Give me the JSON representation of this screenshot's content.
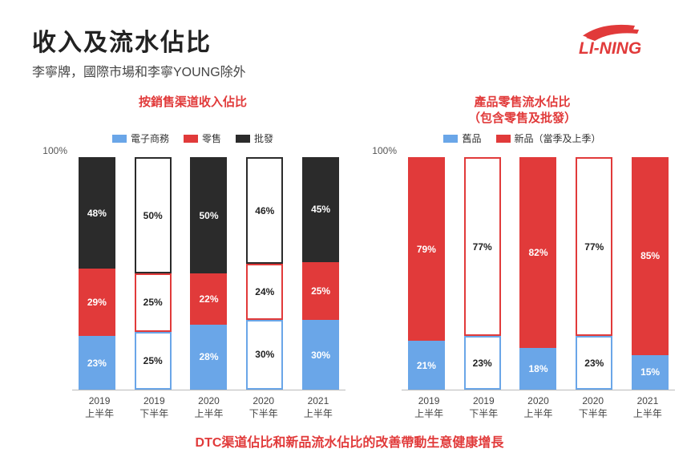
{
  "title": "收入及流水佔比",
  "subtitle": "李寧牌，國際市場和李寧YOUNG除外",
  "brand": "LI-NING",
  "brand_color": "#e13a3a",
  "footer_note": "DTC渠道佔比和新品流水佔比的改善帶動生意健康增長",
  "footer_color": "#e13a3a",
  "chart_left": {
    "title": "按銷售渠道收入佔比",
    "type": "stacked-bar-100",
    "y_top_label": "100%",
    "legend": [
      {
        "label": "電子商務",
        "color": "#6aa6e8"
      },
      {
        "label": "零售",
        "color": "#e13a3a"
      },
      {
        "label": "批發",
        "color": "#2b2b2b"
      }
    ],
    "periods": [
      {
        "line1": "2019",
        "line2": "上半年",
        "hollow": false,
        "segments": [
          {
            "v": 48,
            "c": "#2b2b2b"
          },
          {
            "v": 29,
            "c": "#e13a3a"
          },
          {
            "v": 23,
            "c": "#6aa6e8"
          }
        ]
      },
      {
        "line1": "2019",
        "line2": "下半年",
        "hollow": true,
        "segments": [
          {
            "v": 50,
            "c": "#2b2b2b"
          },
          {
            "v": 25,
            "c": "#e13a3a"
          },
          {
            "v": 25,
            "c": "#6aa6e8"
          }
        ]
      },
      {
        "line1": "2020",
        "line2": "上半年",
        "hollow": false,
        "segments": [
          {
            "v": 50,
            "c": "#2b2b2b"
          },
          {
            "v": 22,
            "c": "#e13a3a"
          },
          {
            "v": 28,
            "c": "#6aa6e8"
          }
        ]
      },
      {
        "line1": "2020",
        "line2": "下半年",
        "hollow": true,
        "segments": [
          {
            "v": 46,
            "c": "#2b2b2b"
          },
          {
            "v": 24,
            "c": "#e13a3a"
          },
          {
            "v": 30,
            "c": "#6aa6e8"
          }
        ]
      },
      {
        "line1": "2021",
        "line2": "上半年",
        "hollow": false,
        "segments": [
          {
            "v": 45,
            "c": "#2b2b2b"
          },
          {
            "v": 25,
            "c": "#e13a3a"
          },
          {
            "v": 30,
            "c": "#6aa6e8"
          }
        ]
      }
    ]
  },
  "chart_right": {
    "title": "產品零售流水佔比\n（包含零售及批發）",
    "type": "stacked-bar-100",
    "y_top_label": "100%",
    "legend": [
      {
        "label": "舊品",
        "color": "#6aa6e8"
      },
      {
        "label": "新品（當季及上季）",
        "color": "#e13a3a"
      }
    ],
    "periods": [
      {
        "line1": "2019",
        "line2": "上半年",
        "hollow": false,
        "segments": [
          {
            "v": 79,
            "c": "#e13a3a"
          },
          {
            "v": 21,
            "c": "#6aa6e8"
          }
        ]
      },
      {
        "line1": "2019",
        "line2": "下半年",
        "hollow": true,
        "segments": [
          {
            "v": 77,
            "c": "#e13a3a"
          },
          {
            "v": 23,
            "c": "#6aa6e8"
          }
        ]
      },
      {
        "line1": "2020",
        "line2": "上半年",
        "hollow": false,
        "segments": [
          {
            "v": 82,
            "c": "#e13a3a"
          },
          {
            "v": 18,
            "c": "#6aa6e8"
          }
        ]
      },
      {
        "line1": "2020",
        "line2": "下半年",
        "hollow": true,
        "segments": [
          {
            "v": 77,
            "c": "#e13a3a"
          },
          {
            "v": 23,
            "c": "#6aa6e8"
          }
        ]
      },
      {
        "line1": "2021",
        "line2": "上半年",
        "hollow": false,
        "segments": [
          {
            "v": 85,
            "c": "#e13a3a"
          },
          {
            "v": 15,
            "c": "#6aa6e8"
          }
        ]
      }
    ]
  }
}
